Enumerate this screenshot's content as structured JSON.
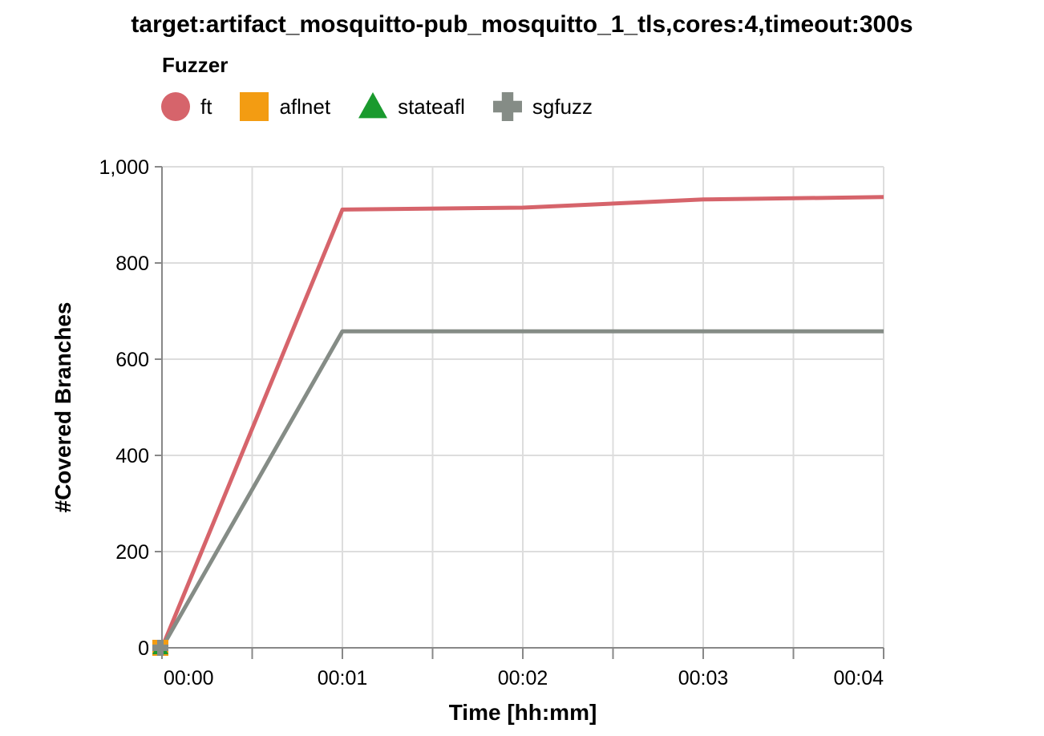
{
  "chart_data": {
    "type": "line",
    "title": "target:artifact_mosquitto-pub_mosquitto_1_tls,cores:4,timeout:300s",
    "xlabel": "Time [hh:mm]",
    "ylabel": "#Covered Branches",
    "legend_title": "Fuzzer",
    "legend_position": "top-left",
    "grid": true,
    "x_unit": "minutes",
    "xlim": [
      0,
      4
    ],
    "ylim": [
      0,
      1000
    ],
    "x_ticks": [
      {
        "value": 0,
        "label": "00:00"
      },
      {
        "value": 1,
        "label": "00:01"
      },
      {
        "value": 2,
        "label": "00:02"
      },
      {
        "value": 3,
        "label": "00:03"
      },
      {
        "value": 4,
        "label": "00:04"
      }
    ],
    "y_ticks": [
      {
        "value": 0,
        "label": "0"
      },
      {
        "value": 200,
        "label": "200"
      },
      {
        "value": 400,
        "label": "400"
      },
      {
        "value": 600,
        "label": "600"
      },
      {
        "value": 800,
        "label": "800"
      },
      {
        "value": 1000,
        "label": "1,000"
      }
    ],
    "series": [
      {
        "name": "ft",
        "color": "#d6646b",
        "symbol": "circle",
        "x": [
          0,
          1,
          2,
          3,
          4
        ],
        "y": [
          0,
          911,
          915,
          932,
          937
        ]
      },
      {
        "name": "aflnet",
        "color": "#f39c12",
        "symbol": "square",
        "x": [
          0
        ],
        "y": [
          0
        ]
      },
      {
        "name": "stateafl",
        "color": "#1a9a2e",
        "symbol": "triangle",
        "x": [
          0
        ],
        "y": [
          0
        ]
      },
      {
        "name": "sgfuzz",
        "color": "#858c86",
        "symbol": "cross",
        "x": [
          0,
          1,
          2,
          3,
          4
        ],
        "y": [
          0,
          658,
          658,
          658,
          658
        ]
      }
    ]
  }
}
